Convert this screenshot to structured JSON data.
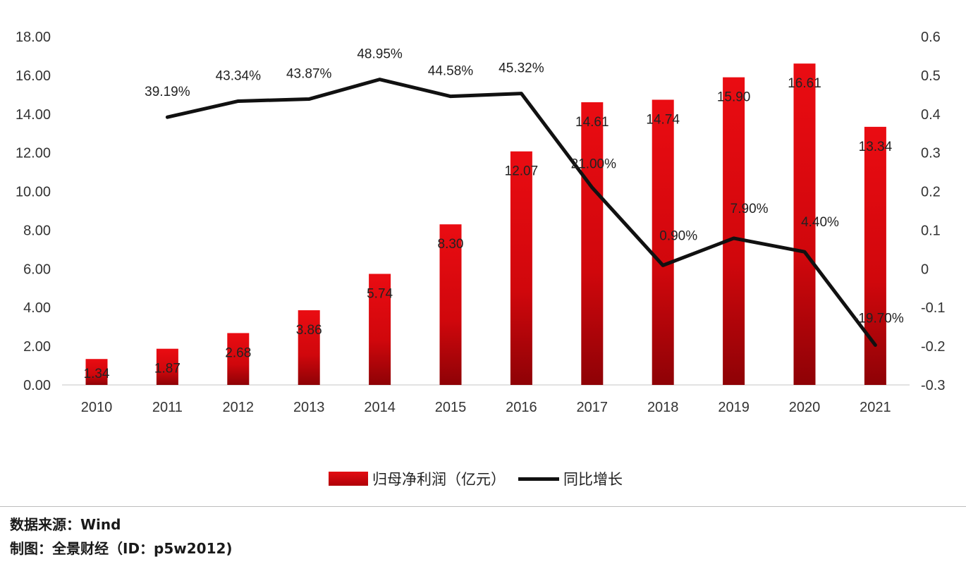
{
  "chart_data": {
    "type": "bar+line",
    "title": "",
    "categories": [
      "2010",
      "2011",
      "2012",
      "2013",
      "2014",
      "2015",
      "2016",
      "2017",
      "2018",
      "2019",
      "2020",
      "2021"
    ],
    "series": [
      {
        "name": "归母净利润（亿元）",
        "type": "bar",
        "axis": "left",
        "color": "#d9070d",
        "values": [
          1.34,
          1.87,
          2.68,
          3.86,
          5.74,
          8.3,
          12.07,
          14.61,
          14.74,
          15.9,
          16.61,
          13.34
        ],
        "labels": [
          "1.34",
          "1.87",
          "2.68",
          "3.86",
          "5.74",
          "8.30",
          "12.07",
          "14.61",
          "14.74",
          "15.90",
          "16.61",
          "13.34"
        ]
      },
      {
        "name": "同比增长",
        "type": "line",
        "axis": "right",
        "color": "#111111",
        "values": [
          null,
          0.3919,
          0.4334,
          0.4387,
          0.4895,
          0.4458,
          0.4532,
          0.21,
          0.009,
          0.079,
          0.044,
          -0.197
        ],
        "labels": [
          "",
          "39.19%",
          "43.34%",
          "43.87%",
          "48.95%",
          "44.58%",
          "45.32%",
          "21.00%",
          "0.90%",
          "7.90%",
          "4.40%",
          "-19.70%"
        ]
      }
    ],
    "left_axis": {
      "min": 0,
      "max": 18,
      "step": 2,
      "ticks": [
        "0.00",
        "2.00",
        "4.00",
        "6.00",
        "8.00",
        "10.00",
        "12.00",
        "14.00",
        "16.00",
        "18.00"
      ]
    },
    "right_axis": {
      "min": -0.3,
      "max": 0.6,
      "step": 0.1,
      "ticks": [
        "-0.3",
        "-0.2",
        "-0.1",
        "0",
        "0.1",
        "0.2",
        "0.3",
        "0.4",
        "0.5",
        "0.6"
      ]
    },
    "xlabel": "",
    "ylabel": "",
    "grid": false,
    "legend_position": "bottom"
  },
  "legend": {
    "bar_label": "归母净利润（亿元）",
    "line_label": "同比增长"
  },
  "footer": {
    "source": "数据来源：Wind",
    "credit": "制图：全景财经（ID：p5w2012)"
  }
}
